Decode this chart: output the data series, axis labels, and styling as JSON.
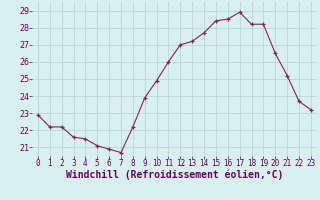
{
  "x": [
    0,
    1,
    2,
    3,
    4,
    5,
    6,
    7,
    8,
    9,
    10,
    11,
    12,
    13,
    14,
    15,
    16,
    17,
    18,
    19,
    20,
    21,
    22,
    23
  ],
  "y": [
    22.9,
    22.2,
    22.2,
    21.6,
    21.5,
    21.1,
    20.9,
    20.7,
    22.2,
    23.9,
    24.9,
    26.0,
    27.0,
    27.2,
    27.7,
    28.4,
    28.5,
    28.9,
    28.2,
    28.2,
    26.5,
    25.2,
    23.7,
    23.2
  ],
  "line_color": "#882255",
  "marker": "+",
  "xlabel": "Windchill (Refroidissement éolien,°C)",
  "xlabel_fontsize": 7,
  "bg_color": "#d8f0f0",
  "grid_color": "#b8d8d8",
  "ylim": [
    20.5,
    29.5
  ],
  "yticks": [
    21,
    22,
    23,
    24,
    25,
    26,
    27,
    28,
    29
  ],
  "xticks": [
    0,
    1,
    2,
    3,
    4,
    5,
    6,
    7,
    8,
    9,
    10,
    11,
    12,
    13,
    14,
    15,
    16,
    17,
    18,
    19,
    20,
    21,
    22,
    23
  ],
  "tick_fontsize": 5.5,
  "ytick_fontsize": 6.0
}
